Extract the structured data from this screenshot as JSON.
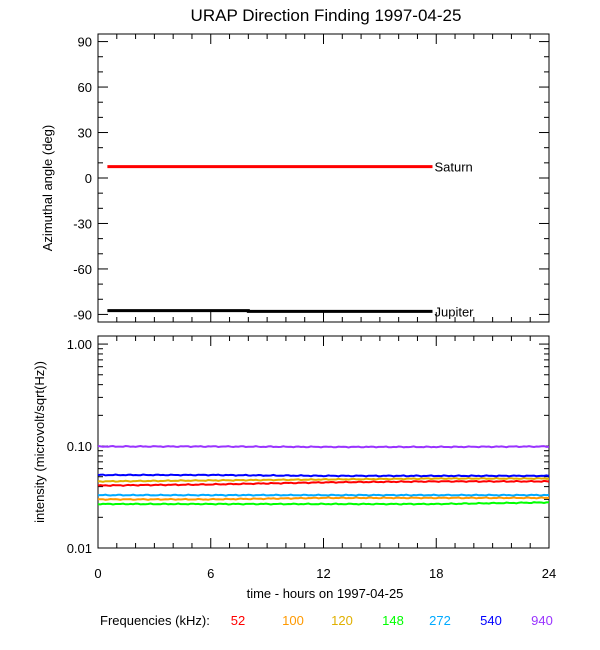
{
  "chart_data": [
    {
      "type": "line",
      "title": "URAP Direction Finding  1997-04-25",
      "ylabel": "Azimuthal angle (deg)",
      "ylim": [
        -95,
        95
      ],
      "yticks": [
        "90",
        "60",
        "30",
        "0",
        "-30",
        "-60",
        "-90"
      ],
      "xlim": [
        0,
        24
      ],
      "grid": false,
      "series": [
        {
          "name": "Saturn",
          "color": "#ff0000",
          "x": [
            0.5,
            17.8
          ],
          "values": [
            7.5,
            7.5
          ]
        },
        {
          "name": "Jupiter",
          "color": "#000000",
          "x": [
            0.5,
            8.0,
            8.0,
            17.8
          ],
          "values": [
            -87.5,
            -87.5,
            -88.0,
            -88.0
          ]
        }
      ]
    },
    {
      "type": "line",
      "ylabel": "intensity (microvolt/sqrt(Hz))",
      "yscale": "log",
      "ylim": [
        0.01,
        1.2
      ],
      "yticks": [
        "1.00",
        "0.10",
        "0.01"
      ],
      "xlabel": "time - hours on 1997-04-25",
      "xlim": [
        0,
        24
      ],
      "xticks": [
        "0",
        "6",
        "12",
        "18",
        "24"
      ],
      "grid": false,
      "legend_title": "Frequencies (kHz):",
      "series": [
        {
          "name": "52",
          "color": "#ff0000",
          "x": [
            0,
            6,
            12,
            18,
            24
          ],
          "values": [
            0.041,
            0.042,
            0.044,
            0.045,
            0.045
          ]
        },
        {
          "name": "100",
          "color": "#ff9900",
          "x": [
            0,
            6,
            12,
            18,
            24
          ],
          "values": [
            0.03,
            0.03,
            0.031,
            0.031,
            0.031
          ]
        },
        {
          "name": "120",
          "color": "#e0b000",
          "x": [
            0,
            6,
            12,
            18,
            24
          ],
          "values": [
            0.045,
            0.046,
            0.047,
            0.048,
            0.048
          ]
        },
        {
          "name": "148",
          "color": "#00ff00",
          "x": [
            0,
            6,
            12,
            18,
            24
          ],
          "values": [
            0.027,
            0.027,
            0.027,
            0.027,
            0.028
          ]
        },
        {
          "name": "272",
          "color": "#00aaff",
          "x": [
            0,
            6,
            12,
            18,
            24
          ],
          "values": [
            0.033,
            0.033,
            0.033,
            0.033,
            0.033
          ]
        },
        {
          "name": "540",
          "color": "#0000ff",
          "x": [
            0,
            6,
            12,
            18,
            24
          ],
          "values": [
            0.052,
            0.052,
            0.051,
            0.051,
            0.051
          ]
        },
        {
          "name": "940",
          "color": "#9933ff",
          "x": [
            0,
            6,
            12,
            18,
            24
          ],
          "values": [
            0.099,
            0.099,
            0.098,
            0.098,
            0.099
          ]
        }
      ]
    }
  ]
}
